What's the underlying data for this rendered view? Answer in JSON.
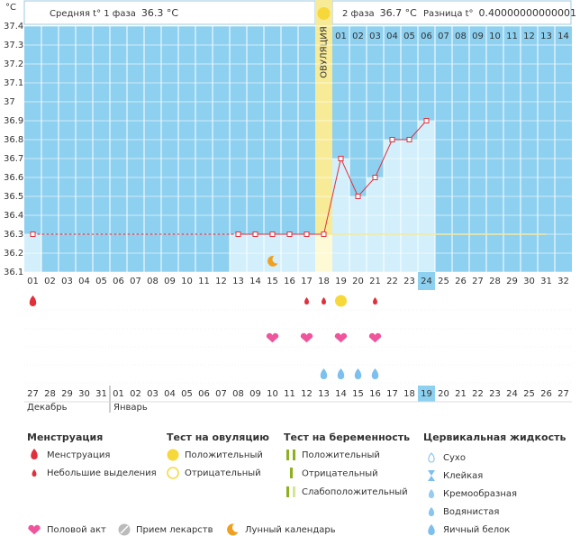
{
  "header": {
    "unit": "°C",
    "phase1": "Средняя t° 1 фаза",
    "phase1_value": "36.3 °C",
    "phase2": "2 фаза",
    "phase2_value": "36.7 °C",
    "difference": "Разница t°",
    "difference_value": "0.40000000000001 °C",
    "ovulation_label": "ОВУЛЯЦИЯ"
  },
  "chart_data": {
    "type": "line",
    "color": "#e0303c",
    "bar_color": "#d2effb",
    "background": "#8dd0f0",
    "categories": [
      "01",
      "02",
      "03",
      "04",
      "05",
      "06",
      "07",
      "08",
      "09",
      "10",
      "11",
      "12",
      "13",
      "14",
      "15",
      "16",
      "17",
      "18",
      "19",
      "20",
      "21",
      "22",
      "23",
      "24",
      "25",
      "26",
      "27",
      "28",
      "29",
      "30",
      "31",
      "32"
    ],
    "values": [
      36.3,
      null,
      null,
      null,
      null,
      null,
      null,
      null,
      null,
      null,
      null,
      null,
      36.3,
      36.3,
      36.3,
      36.3,
      36.3,
      36.3,
      36.7,
      36.5,
      36.6,
      36.8,
      36.8,
      36.9,
      null,
      null,
      null,
      null,
      null,
      null,
      null,
      null
    ],
    "ylim": [
      36.1,
      37.4
    ],
    "yticks": [
      37.4,
      37.3,
      37.2,
      37.1,
      37,
      36.9,
      36.8,
      36.7,
      36.6,
      36.5,
      36.4,
      36.3,
      36.2,
      36.1
    ],
    "grid": true,
    "coverline": 36.3,
    "ovulation_day": "18",
    "today": "24",
    "phase2_days": [
      "01",
      "02",
      "03",
      "04",
      "05",
      "06",
      "07",
      "08",
      "09",
      "10",
      "11",
      "12",
      "13",
      "14"
    ]
  },
  "symbols": {
    "menstruation": [
      "01"
    ],
    "spotting": [
      "17",
      "18",
      "21"
    ],
    "ovulation_positive": [
      "19"
    ],
    "intercourse": [
      "15",
      "17",
      "19",
      "21"
    ],
    "egg_white": [
      "18",
      "19",
      "20",
      "21"
    ],
    "moon": [
      "15"
    ]
  },
  "dates": [
    {
      "label": "27",
      "weekend": true
    },
    {
      "label": "28",
      "weekend": true
    },
    {
      "label": "29",
      "weekend": false
    },
    {
      "label": "30",
      "weekend": false
    },
    {
      "label": "31",
      "weekend": false
    },
    {
      "label": "01",
      "weekend": false
    },
    {
      "label": "02",
      "weekend": false
    },
    {
      "label": "03",
      "weekend": true
    },
    {
      "label": "04",
      "weekend": true
    },
    {
      "label": "05",
      "weekend": false
    },
    {
      "label": "06",
      "weekend": false
    },
    {
      "label": "07",
      "weekend": false
    },
    {
      "label": "08",
      "weekend": false
    },
    {
      "label": "09",
      "weekend": false
    },
    {
      "label": "10",
      "weekend": true
    },
    {
      "label": "11",
      "weekend": true
    },
    {
      "label": "12",
      "weekend": false
    },
    {
      "label": "13",
      "weekend": false
    },
    {
      "label": "14",
      "weekend": false
    },
    {
      "label": "15",
      "weekend": false
    },
    {
      "label": "16",
      "weekend": false
    },
    {
      "label": "17",
      "weekend": true
    },
    {
      "label": "18",
      "weekend": true
    },
    {
      "label": "19",
      "weekend": false
    },
    {
      "label": "20",
      "weekend": false
    },
    {
      "label": "21",
      "weekend": false
    },
    {
      "label": "22",
      "weekend": false
    },
    {
      "label": "23",
      "weekend": false
    },
    {
      "label": "24",
      "weekend": true
    },
    {
      "label": "25",
      "weekend": true
    },
    {
      "label": "26",
      "weekend": false
    },
    {
      "label": "27",
      "weekend": false
    }
  ],
  "months": [
    "Декабрь",
    "Январь"
  ],
  "legend": {
    "menstruation": {
      "title": "Менструация",
      "items": [
        "Менструация",
        "Небольшие выделения"
      ]
    },
    "ovulation_test": {
      "title": "Тест на овуляцию",
      "items": [
        "Положительный",
        "Отрицательный"
      ]
    },
    "pregnancy_test": {
      "title": "Тест на беременность",
      "items": [
        "Положительный",
        "Отрицательный",
        "Слабоположительный"
      ]
    },
    "cervical": {
      "title": "Цервикальная жидкость",
      "items": [
        "Сухо",
        "Клейкая",
        "Кремообразная",
        "Водянистая",
        "Яичный белок"
      ]
    },
    "other": [
      "Половой акт",
      "Прием лекарств",
      "Лунный календарь"
    ]
  }
}
